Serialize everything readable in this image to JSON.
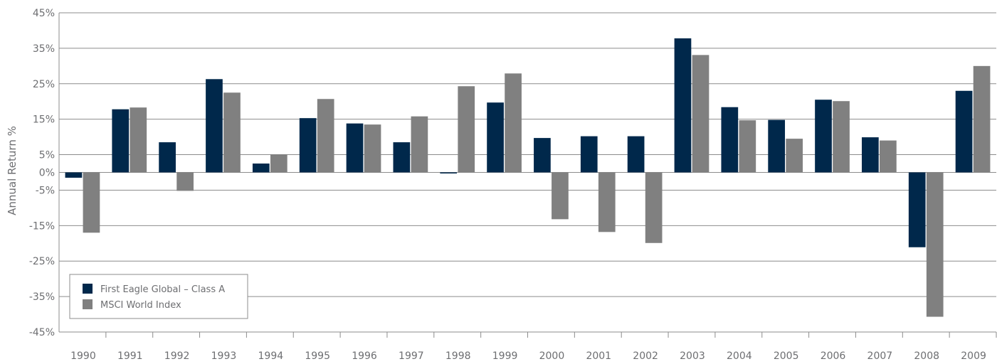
{
  "chart_data": {
    "type": "bar",
    "title": "",
    "xlabel": "",
    "ylabel": "Annual Return %",
    "ylim": [
      -45,
      45
    ],
    "yticks": [
      45,
      35,
      25,
      15,
      5,
      0,
      -5,
      -15,
      -25,
      -35,
      -45
    ],
    "ytick_labels": [
      "45%",
      "35%",
      "25%",
      "15%",
      "5%",
      "0%",
      "-5%",
      "-15%",
      "-25%",
      "-35%",
      "-45%"
    ],
    "categories": [
      "1990",
      "1991",
      "1992",
      "1993",
      "1994",
      "1995",
      "1996",
      "1997",
      "1998",
      "1999",
      "2000",
      "2001",
      "2002",
      "2003",
      "2004",
      "2005",
      "2006",
      "2007",
      "2008",
      "2009"
    ],
    "series": [
      {
        "name": "First Eagle Global – Class A",
        "color": "#00284b",
        "values": [
          -1.5,
          17.8,
          8.5,
          26.3,
          2.5,
          15.3,
          13.8,
          8.5,
          -0.3,
          19.7,
          9.7,
          10.2,
          10.2,
          37.8,
          18.4,
          14.8,
          20.5,
          9.9,
          -21.1,
          23.0
        ]
      },
      {
        "name": "MSCI World Index",
        "color": "#808080",
        "values": [
          -17.0,
          18.3,
          -5.2,
          22.5,
          5.1,
          20.7,
          13.5,
          15.8,
          24.3,
          27.9,
          -13.2,
          -16.8,
          -19.9,
          33.1,
          14.7,
          9.5,
          20.1,
          9.0,
          -40.7,
          30.0
        ]
      }
    ],
    "grid": "horizontal",
    "legend": {
      "position": "bottom-left"
    }
  }
}
